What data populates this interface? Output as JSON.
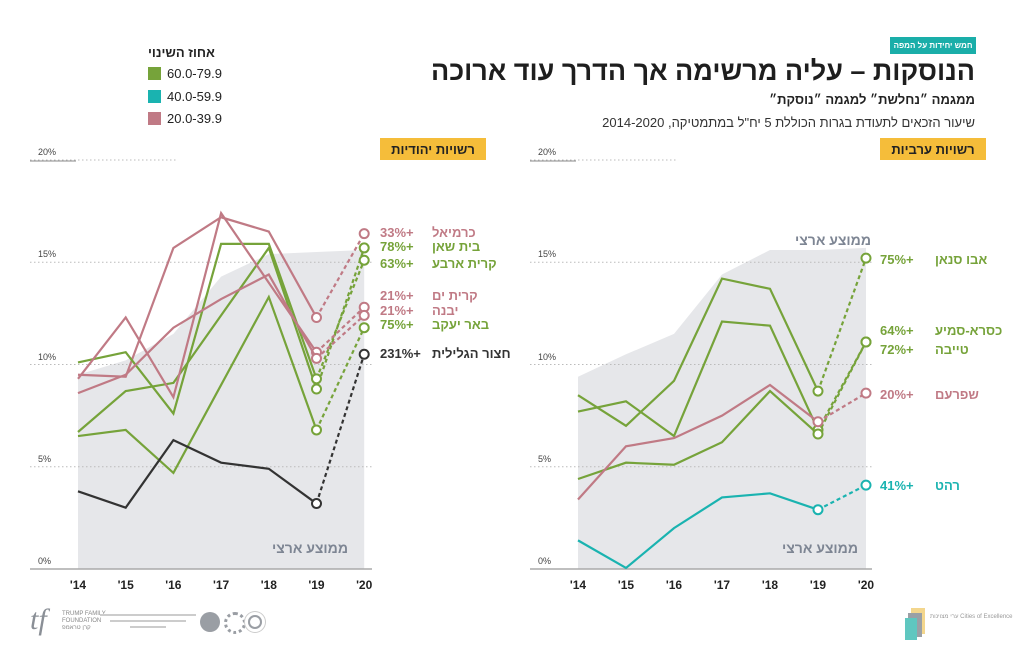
{
  "header": {
    "badge": "חמש יחידות על המפה",
    "title": "הנוסקות – עליה מרשימה אך הדרך עוד ארוכה",
    "subtitle": "ממגמה ״נחלשת״ למגמה ״נוסקת״",
    "description": "שיעור הזכאים לתעודת בגרות הכוללת 5 יח\"ל במתמטיקה, 2014-2020"
  },
  "legend": {
    "title": "אחוז השינוי",
    "items": [
      {
        "label": "60.0-79.9",
        "color": "#76a33a"
      },
      {
        "label": "40.0-59.9",
        "color": "#1ab3b0"
      },
      {
        "label": "20.0-39.9",
        "color": "#c07a85"
      }
    ]
  },
  "colors": {
    "green": "#76a33a",
    "teal": "#1ab3b0",
    "pink": "#c07a85",
    "black": "#333333",
    "avg_area": "#e6e7ea",
    "badge_yellow": "#f5bd3a",
    "badge_teal": "#1aaea9"
  },
  "footer": {
    "left_logo": "TRUMP FAMILY FOUNDATION קרן טראמפ",
    "right_logo": "ערי מצוינות Cities of Excellence"
  },
  "chart_data": [
    {
      "type": "line",
      "panel_label": "רשויות יהודיות",
      "categories": [
        "'14",
        "'15",
        "'16",
        "'17",
        "'18",
        "'19",
        "'20"
      ],
      "y_ticks": [
        "0%",
        "5%",
        "10%",
        "15%",
        "20%"
      ],
      "ylim": [
        0,
        20
      ],
      "national_average": {
        "label": "ממוצע ארצי",
        "values": [
          9.5,
          10.2,
          11.5,
          14.3,
          15.4,
          15.5,
          15.6
        ]
      },
      "series": [
        {
          "name": "כרמיאל",
          "change": "+33%",
          "color": "#c07a85",
          "values": [
            9.5,
            9.4,
            15.7,
            17.2,
            16.5,
            12.3,
            16.4
          ]
        },
        {
          "name": "בית שאן",
          "change": "+78%",
          "color": "#76a33a",
          "values": [
            6.7,
            8.7,
            9.1,
            12.4,
            15.7,
            8.8,
            15.7
          ]
        },
        {
          "name": "קרית ארבע",
          "change": "+63%",
          "color": "#76a33a",
          "values": [
            10.1,
            10.6,
            7.6,
            15.9,
            15.9,
            9.3,
            15.1
          ]
        },
        {
          "name": "קרית ים",
          "change": "+21%",
          "color": "#c07a85",
          "values": [
            9.3,
            12.3,
            8.4,
            17.4,
            14.0,
            10.6,
            12.8
          ]
        },
        {
          "name": "יבנה",
          "change": "+21%",
          "color": "#c07a85",
          "values": [
            8.6,
            9.5,
            11.8,
            13.2,
            14.4,
            10.3,
            12.4
          ]
        },
        {
          "name": "באר יעקב",
          "change": "+75%",
          "color": "#76a33a",
          "values": [
            6.5,
            6.8,
            4.7,
            9.0,
            13.3,
            6.8,
            11.8
          ]
        },
        {
          "name": "חצור הגלילית",
          "change": "+231%",
          "color": "#333333",
          "values": [
            3.8,
            3.0,
            6.3,
            5.2,
            4.9,
            3.2,
            10.5
          ]
        }
      ]
    },
    {
      "type": "line",
      "panel_label": "רשויות ערביות",
      "categories": [
        "'14",
        "'15",
        "'16",
        "'17",
        "'18",
        "'19",
        "'20"
      ],
      "y_ticks": [
        "0%",
        "5%",
        "10%",
        "15%",
        "20%"
      ],
      "ylim": [
        0,
        20
      ],
      "national_average": {
        "label": "ממוצע ארצי",
        "values": [
          9.4,
          10.5,
          11.5,
          14.4,
          15.6,
          15.6,
          15.7
        ]
      },
      "series": [
        {
          "name": "אבו סנאן",
          "change": "+75%",
          "color": "#76a33a",
          "values": [
            8.5,
            7.0,
            9.2,
            14.2,
            13.7,
            8.7,
            15.2
          ]
        },
        {
          "name": "כסרא-סמיע",
          "change": "+64%",
          "color": "#76a33a",
          "values": [
            7.7,
            8.2,
            6.5,
            12.1,
            11.9,
            6.8,
            11.1
          ]
        },
        {
          "name": "טייבה",
          "change": "+72%",
          "color": "#76a33a",
          "values": [
            4.4,
            5.2,
            5.1,
            6.2,
            8.7,
            6.6,
            11.1
          ]
        },
        {
          "name": "שפרעם",
          "change": "+20%",
          "color": "#c07a85",
          "values": [
            3.4,
            6.0,
            6.4,
            7.5,
            9.0,
            7.2,
            8.6
          ]
        },
        {
          "name": "רהט",
          "change": "+41%",
          "color": "#1ab3b0",
          "values": [
            1.4,
            0.05,
            2.0,
            3.5,
            3.7,
            2.9,
            4.1
          ]
        }
      ]
    }
  ]
}
